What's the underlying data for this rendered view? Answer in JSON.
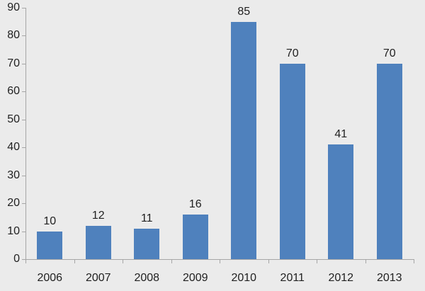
{
  "chart_data": {
    "type": "bar",
    "title": "",
    "xlabel": "",
    "ylabel": "",
    "categories": [
      "2006",
      "2007",
      "2008",
      "2009",
      "2010",
      "2011",
      "2012",
      "2013"
    ],
    "values": [
      10,
      12,
      11,
      16,
      85,
      70,
      41,
      70
    ],
    "data_labels": [
      "10",
      "12",
      "11",
      "16",
      "85",
      "70",
      "41",
      "70"
    ],
    "ylim": [
      0,
      90
    ],
    "ytick_step": 10,
    "ytick_labels": [
      "0",
      "10",
      "20",
      "30",
      "40",
      "50",
      "60",
      "70",
      "80",
      "90"
    ],
    "grid": false,
    "legend": false,
    "colors": {
      "background": "#ebebeb",
      "bar_fill": "#4f81bd",
      "axis_line": "#a6a6a6",
      "label_text": "#212121"
    }
  }
}
